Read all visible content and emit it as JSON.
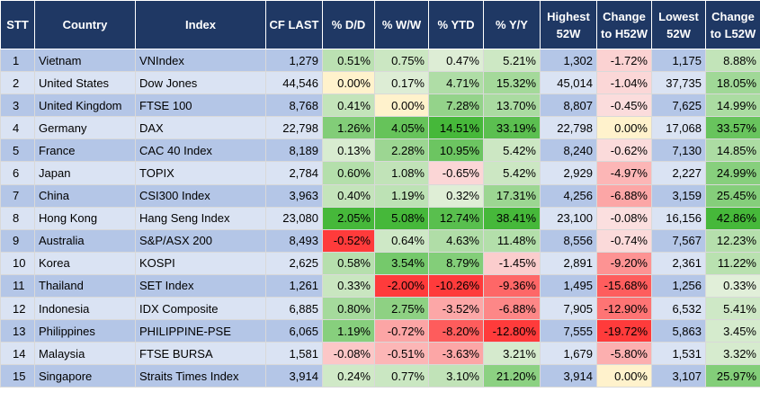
{
  "headers": {
    "stt": "STT",
    "country": "Country",
    "index": "Index",
    "cf_last": "CF LAST",
    "dd": "% D/D",
    "ww": "% W/W",
    "ytd": "% YTD",
    "yy": "% Y/Y",
    "highest_52w": "Highest 52W",
    "change_to_h52w": "Change to H52W",
    "lowest_52w": "Lowest 52W",
    "change_to_l52w": "Change to L52W"
  },
  "rows": [
    {
      "stt": "1",
      "country": "Vietnam",
      "index": "VNIndex",
      "cf_last": "1,279",
      "dd": "0.51%",
      "ww": "0.75%",
      "ytd": "0.47%",
      "yy": "5.21%",
      "high": "1,302",
      "chh": "-1.72%",
      "low": "1,175",
      "chl": "8.88%"
    },
    {
      "stt": "2",
      "country": "United States",
      "index": "Dow Jones",
      "cf_last": "44,546",
      "dd": "0.00%",
      "ww": "0.17%",
      "ytd": "4.71%",
      "yy": "15.32%",
      "high": "45,014",
      "chh": "-1.04%",
      "low": "37,735",
      "chl": "18.05%"
    },
    {
      "stt": "3",
      "country": "United Kingdom",
      "index": "FTSE 100",
      "cf_last": "8,768",
      "dd": "0.41%",
      "ww": "0.00%",
      "ytd": "7.28%",
      "yy": "13.70%",
      "high": "8,807",
      "chh": "-0.45%",
      "low": "7,625",
      "chl": "14.99%"
    },
    {
      "stt": "4",
      "country": "Germany",
      "index": "DAX",
      "cf_last": "22,798",
      "dd": "1.26%",
      "ww": "4.05%",
      "ytd": "14.51%",
      "yy": "33.19%",
      "high": "22,798",
      "chh": "0.00%",
      "low": "17,068",
      "chl": "33.57%"
    },
    {
      "stt": "5",
      "country": "France",
      "index": "CAC 40 Index",
      "cf_last": "8,189",
      "dd": "0.13%",
      "ww": "2.28%",
      "ytd": "10.95%",
      "yy": "5.42%",
      "high": "8,240",
      "chh": "-0.62%",
      "low": "7,130",
      "chl": "14.85%"
    },
    {
      "stt": "6",
      "country": "Japan",
      "index": "TOPIX",
      "cf_last": "2,784",
      "dd": "0.60%",
      "ww": "1.08%",
      "ytd": "-0.65%",
      "yy": "5.42%",
      "high": "2,929",
      "chh": "-4.97%",
      "low": "2,227",
      "chl": "24.99%"
    },
    {
      "stt": "7",
      "country": "China",
      "index": "CSI300 Index",
      "cf_last": "3,963",
      "dd": "0.40%",
      "ww": "1.19%",
      "ytd": "0.32%",
      "yy": "17.31%",
      "high": "4,256",
      "chh": "-6.88%",
      "low": "3,159",
      "chl": "25.45%"
    },
    {
      "stt": "8",
      "country": "Hong Kong",
      "index": "Hang Seng Index",
      "cf_last": "23,080",
      "dd": "2.05%",
      "ww": "5.08%",
      "ytd": "12.74%",
      "yy": "38.41%",
      "high": "23,100",
      "chh": "-0.08%",
      "low": "16,156",
      "chl": "42.86%"
    },
    {
      "stt": "9",
      "country": "Australia",
      "index": "S&P/ASX 200",
      "cf_last": "8,493",
      "dd": "-0.52%",
      "ww": "0.64%",
      "ytd": "4.63%",
      "yy": "11.48%",
      "high": "8,556",
      "chh": "-0.74%",
      "low": "7,567",
      "chl": "12.23%"
    },
    {
      "stt": "10",
      "country": "Korea",
      "index": "KOSPI",
      "cf_last": "2,625",
      "dd": "0.58%",
      "ww": "3.54%",
      "ytd": "8.79%",
      "yy": "-1.45%",
      "high": "2,891",
      "chh": "-9.20%",
      "low": "2,361",
      "chl": "11.22%"
    },
    {
      "stt": "11",
      "country": "Thailand",
      "index": "SET Index",
      "cf_last": "1,261",
      "dd": "0.33%",
      "ww": "-2.00%",
      "ytd": "-10.26%",
      "yy": "-9.36%",
      "high": "1,495",
      "chh": "-15.68%",
      "low": "1,256",
      "chl": "0.33%"
    },
    {
      "stt": "12",
      "country": "Indonesia",
      "index": "IDX Composite",
      "cf_last": "6,885",
      "dd": "0.80%",
      "ww": "2.75%",
      "ytd": "-3.52%",
      "yy": "-6.88%",
      "high": "7,905",
      "chh": "-12.90%",
      "low": "6,532",
      "chl": "5.41%"
    },
    {
      "stt": "13",
      "country": "Philippines",
      "index": "PHILIPPINE-PSE",
      "cf_last": "6,065",
      "dd": "1.19%",
      "ww": "-0.72%",
      "ytd": "-8.20%",
      "yy": "-12.80%",
      "high": "7,555",
      "chh": "-19.72%",
      "low": "5,863",
      "chl": "3.45%"
    },
    {
      "stt": "14",
      "country": "Malaysia",
      "index": "FTSE BURSA",
      "cf_last": "1,581",
      "dd": "-0.08%",
      "ww": "-0.51%",
      "ytd": "-3.63%",
      "yy": "3.21%",
      "high": "1,679",
      "chh": "-5.80%",
      "low": "1,531",
      "chl": "3.32%"
    },
    {
      "stt": "15",
      "country": "Singapore",
      "index": "Straits Times Index",
      "cf_last": "3,914",
      "dd": "0.24%",
      "ww": "0.77%",
      "ytd": "3.10%",
      "yy": "21.20%",
      "high": "3,914",
      "chh": "0.00%",
      "low": "3,107",
      "chl": "25.97%"
    }
  ],
  "colors": {
    "header_bg": "#1f3864",
    "row_odd": "#b4c6e7",
    "row_even": "#dae3f3",
    "zero": "#fff2cc",
    "positive_max": "#46b83a",
    "positive_min": "#e2efda",
    "negative_max": "#ff3b3b",
    "negative_min": "#fbe0e0"
  }
}
